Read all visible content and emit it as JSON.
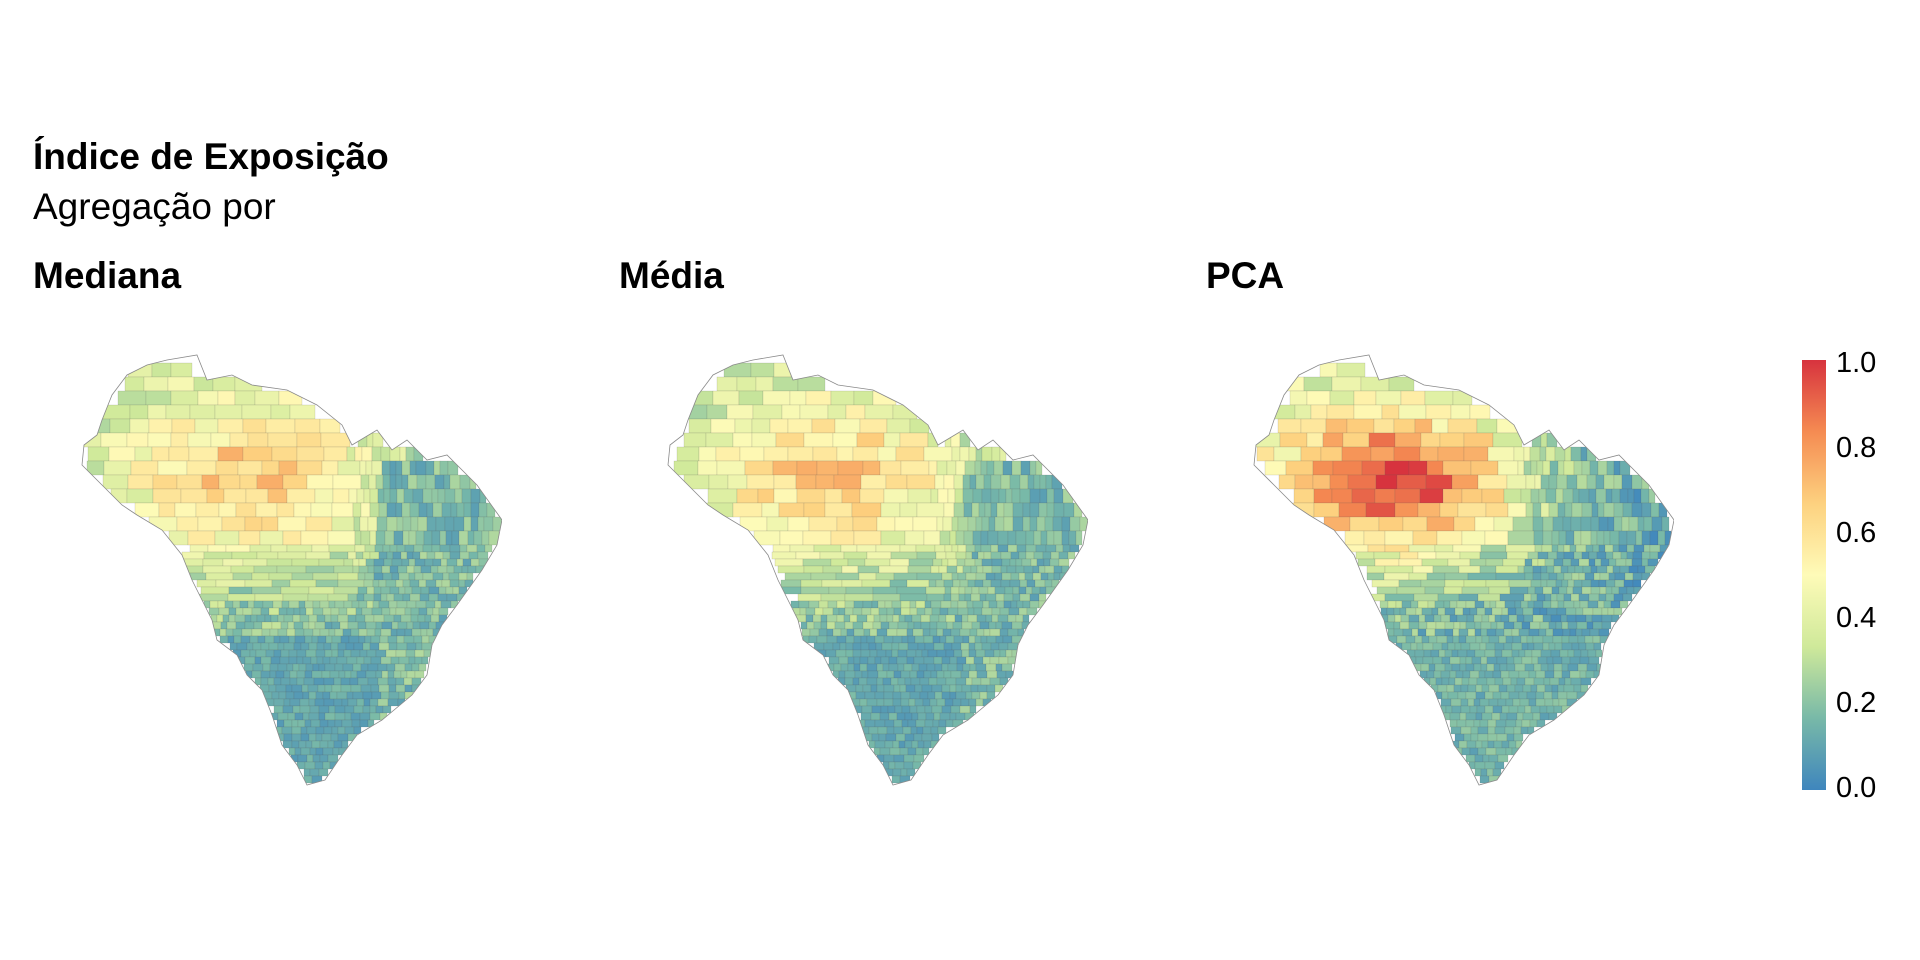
{
  "header": {
    "title": "Índice de Exposição",
    "subtitle": "Agregação por"
  },
  "panels": [
    {
      "label": "Mediana",
      "scheme": "low"
    },
    {
      "label": "Média",
      "scheme": "low"
    },
    {
      "label": "PCA",
      "scheme": "high"
    }
  ],
  "legend": {
    "ticks": [
      "1.0",
      "0.8",
      "0.6",
      "0.4",
      "0.2",
      "0.0"
    ],
    "range": [
      0,
      1
    ],
    "colors": [
      "#3f86bd",
      "#78b9a8",
      "#cfe99a",
      "#fefbb8",
      "#fdd17f",
      "#f58b52",
      "#d7333e"
    ]
  }
}
